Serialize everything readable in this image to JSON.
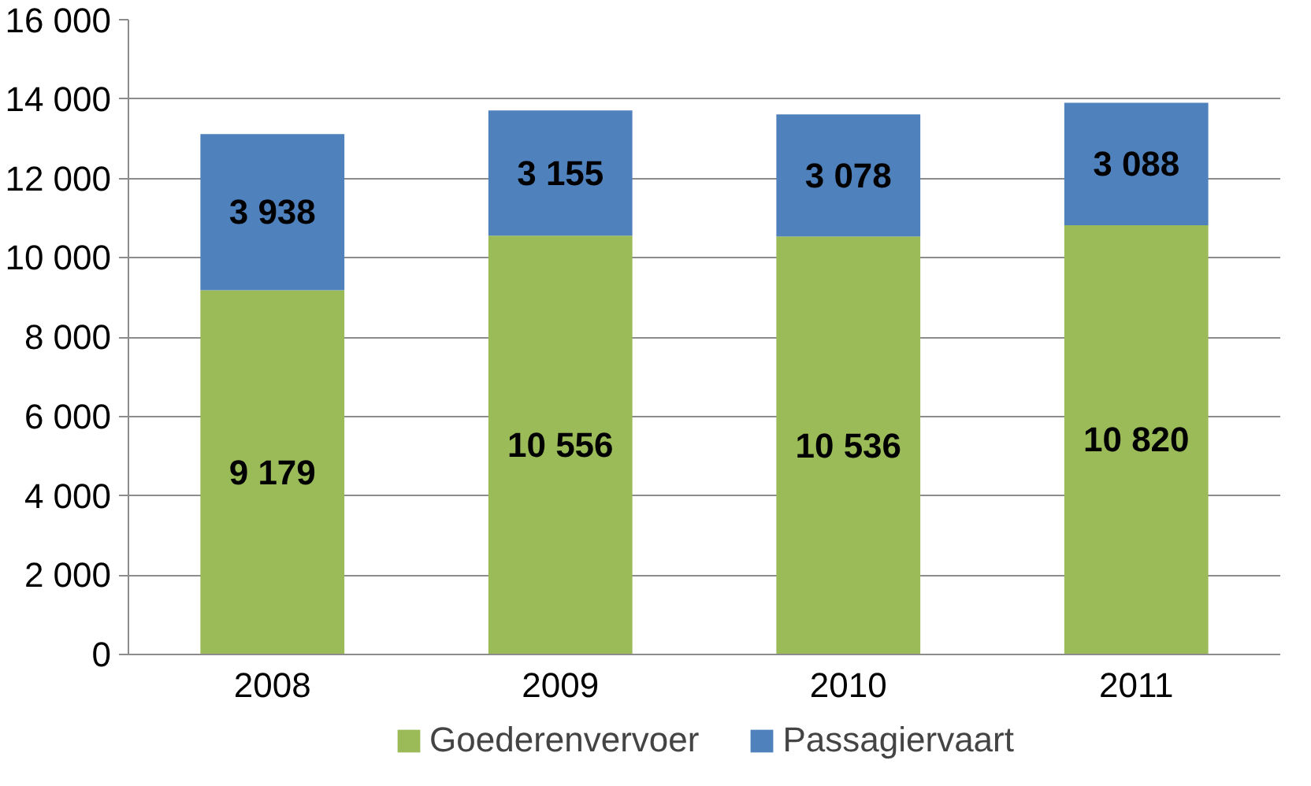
{
  "chart_data": {
    "type": "bar",
    "stacked": true,
    "categories": [
      "2008",
      "2009",
      "2010",
      "2011"
    ],
    "series": [
      {
        "name": "Goederenvervoer",
        "color": "#9bbb59",
        "values": [
          9179,
          10556,
          10536,
          10820
        ],
        "value_labels": [
          "9 179",
          "10 556",
          "10 536",
          "10 820"
        ]
      },
      {
        "name": "Passagiervaart",
        "color": "#4f81bd",
        "values": [
          3938,
          3155,
          3078,
          3088
        ],
        "value_labels": [
          "3 938",
          "3 155",
          "3 078",
          "3 088"
        ]
      }
    ],
    "ylim": [
      0,
      16000
    ],
    "yticks": [
      0,
      {
        "value": 2000,
        "label": "2 000"
      },
      {
        "value": 4000,
        "label": "4 000"
      },
      {
        "value": 6000,
        "label": "6 000"
      },
      {
        "value": 8000,
        "label": "8 000"
      },
      {
        "value": 10000,
        "label": "10 000"
      },
      {
        "value": 12000,
        "label": "12 000"
      },
      {
        "value": 14000,
        "label": "14 000"
      },
      {
        "value": 16000,
        "label": "16 000"
      }
    ],
    "grid": "y",
    "legend": "bottom"
  }
}
